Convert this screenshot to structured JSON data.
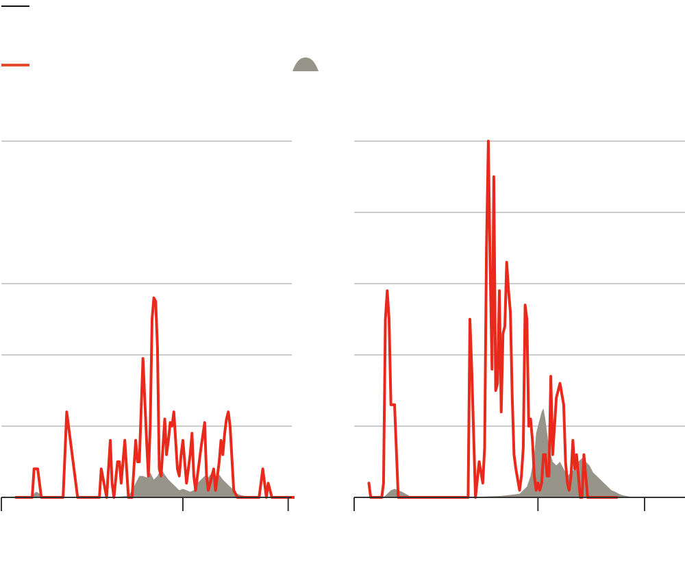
{
  "colors": {
    "line": "#e8291c",
    "area": "#97958a",
    "grid": "#cccccc",
    "axis": "#333333",
    "legend_black": "#111111",
    "legend_red": "#e24a2b"
  },
  "legend": {
    "items": [
      {
        "icon": "black-line-swatch"
      },
      {
        "icon": "red-line-swatch"
      },
      {
        "icon": "gray-area-swatch"
      }
    ]
  },
  "chart_data": [
    {
      "type": "line",
      "title": "",
      "xlabel": "",
      "ylabel": "",
      "ylim": [
        0,
        5
      ],
      "xlim": [
        0,
        160
      ],
      "x_ticks": [
        0,
        100,
        158
      ],
      "y_gridlines": [
        1,
        2,
        3,
        5
      ],
      "grid": true,
      "series": [
        {
          "kind": "line",
          "x": [
            8,
            17,
            18,
            20,
            21,
            22,
            24,
            25,
            26,
            27,
            30,
            31,
            32,
            33,
            34,
            35,
            36,
            42,
            51,
            52,
            54,
            55,
            58,
            60,
            61,
            62,
            64,
            65,
            66,
            68,
            70,
            71,
            72,
            74,
            75,
            76,
            78,
            80,
            81,
            82,
            83,
            84,
            85,
            86,
            87,
            88,
            90,
            91,
            92,
            93,
            94,
            95,
            96,
            97,
            98,
            99,
            100,
            101,
            102,
            104,
            105,
            106,
            107,
            108,
            110,
            112,
            113,
            114,
            116,
            117,
            118,
            120,
            121,
            122,
            123,
            124,
            125,
            126,
            128,
            130,
            137,
            140,
            142,
            144,
            146,
            147,
            149,
            150,
            152,
            153,
            154,
            158,
            160,
            162
          ],
          "y": [
            0,
            0,
            0.4,
            0.4,
            0.2,
            0,
            0,
            0,
            0,
            0,
            0,
            0,
            0,
            0,
            0,
            0.6,
            1.2,
            0,
            0,
            0,
            0,
            0.4,
            0,
            0.8,
            0.2,
            0,
            0.5,
            0.5,
            0.2,
            0.8,
            0,
            0,
            0,
            0.8,
            0.5,
            0.5,
            1.95,
            0.8,
            0.3,
            1.0,
            2.5,
            2.8,
            2.75,
            2.1,
            0.4,
            0.3,
            1.1,
            0.6,
            0.8,
            1.05,
            1.0,
            1.2,
            0.8,
            0.4,
            0.3,
            0.6,
            0.8,
            0.5,
            0.2,
            0.6,
            0.9,
            0.3,
            0.1,
            0.3,
            0.7,
            1.05,
            0.3,
            0.1,
            0.3,
            0.4,
            0.1,
            0.5,
            0.8,
            0.6,
            0.9,
            1.1,
            1.2,
            1.0,
            0.1,
            0,
            0,
            0,
            0,
            0.4,
            0,
            0.2,
            0,
            0,
            0,
            0,
            0,
            0,
            0,
            0
          ]
        },
        {
          "kind": "area",
          "x": [
            16,
            17,
            18,
            19,
            20,
            21,
            22,
            23,
            24,
            25,
            60,
            70,
            72,
            74,
            76,
            78,
            80,
            82,
            84,
            86,
            88,
            90,
            92,
            94,
            96,
            98,
            100,
            102,
            104,
            106,
            108,
            110,
            112,
            114,
            116,
            118,
            120,
            122,
            124,
            126,
            128,
            130,
            132,
            134,
            136,
            138,
            140,
            142,
            144,
            146
          ],
          "y": [
            0,
            0.02,
            0.05,
            0.08,
            0.07,
            0.05,
            0.03,
            0.02,
            0,
            0,
            0,
            0.02,
            0.1,
            0.2,
            0.3,
            0.3,
            0.28,
            0.35,
            0.25,
            0.3,
            0.4,
            0.32,
            0.25,
            0.2,
            0.15,
            0.1,
            0.12,
            0.1,
            0.08,
            0.1,
            0.2,
            0.25,
            0.3,
            0.28,
            0.35,
            0.3,
            0.32,
            0.25,
            0.2,
            0.15,
            0.1,
            0.05,
            0.03,
            0.02,
            0,
            0,
            0,
            0,
            0,
            0
          ]
        }
      ]
    },
    {
      "type": "line",
      "title": "",
      "xlabel": "",
      "ylabel": "",
      "ylim": [
        0,
        5
      ],
      "xlim": [
        0,
        180
      ],
      "x_ticks": [
        0,
        100,
        158
      ],
      "y_gridlines": [
        1,
        2,
        3,
        4,
        5
      ],
      "grid": true,
      "series": [
        {
          "kind": "line",
          "x": [
            8,
            9,
            10,
            12,
            14,
            15,
            16,
            17,
            18,
            19,
            20,
            22,
            24,
            30,
            60,
            62,
            63,
            64,
            66,
            68,
            70,
            71,
            72,
            73,
            74,
            75,
            76,
            77,
            78,
            79,
            80,
            81,
            82,
            83,
            84,
            85,
            86,
            87,
            88,
            90,
            91,
            92,
            93,
            94,
            95,
            96,
            97,
            98,
            99,
            100,
            101,
            102,
            103,
            104,
            105,
            106,
            107,
            108,
            110,
            112,
            114,
            115,
            116,
            117,
            118,
            119,
            120,
            121,
            122,
            123,
            124,
            125,
            127,
            129,
            131,
            133,
            135,
            140,
            141,
            143
          ],
          "y": [
            0.2,
            0,
            0,
            0,
            0,
            0,
            0.2,
            2.5,
            2.9,
            2.5,
            1.3,
            1.3,
            0,
            0,
            0,
            0,
            2.5,
            1.8,
            0,
            0.5,
            0.2,
            0.7,
            3.5,
            5.0,
            3.2,
            1.8,
            4.5,
            1.5,
            1.6,
            2.9,
            1.2,
            2.3,
            2.4,
            3.3,
            2.9,
            2.6,
            1.4,
            0.6,
            0.4,
            0.1,
            0.3,
            0.7,
            2.7,
            2.5,
            1.0,
            1.1,
            0.8,
            0.3,
            0.1,
            0.2,
            0.1,
            0.2,
            0.6,
            0.6,
            0.3,
            0.3,
            1.7,
            0.6,
            1.4,
            1.6,
            1.3,
            0.5,
            0.2,
            0.1,
            0.3,
            0.8,
            0.4,
            0.6,
            0.3,
            0,
            0,
            0.6,
            0,
            0,
            0,
            0,
            0,
            0,
            0,
            0
          ]
        },
        {
          "kind": "area",
          "x": [
            16,
            18,
            20,
            22,
            24,
            26,
            28,
            30,
            40,
            60,
            80,
            90,
            94,
            96,
            98,
            99,
            100,
            101,
            102,
            103,
            104,
            105,
            106,
            108,
            110,
            112,
            114,
            116,
            118,
            120,
            122,
            124,
            126,
            128,
            130,
            132,
            134,
            136,
            138,
            140,
            142,
            144,
            146,
            148,
            150,
            152,
            154,
            156,
            158,
            160
          ],
          "y": [
            0,
            0.05,
            0.1,
            0.12,
            0.1,
            0.08,
            0.05,
            0.02,
            0,
            0,
            0.02,
            0.05,
            0.15,
            0.3,
            0.6,
            0.9,
            1.0,
            1.1,
            1.2,
            1.25,
            1.1,
            0.9,
            0.7,
            0.5,
            0.45,
            0.5,
            0.4,
            0.3,
            0.35,
            0.4,
            0.5,
            0.55,
            0.5,
            0.45,
            0.35,
            0.3,
            0.25,
            0.2,
            0.15,
            0.1,
            0.08,
            0.05,
            0.03,
            0.02,
            0.01,
            0,
            0,
            0,
            0,
            0
          ]
        }
      ]
    }
  ]
}
